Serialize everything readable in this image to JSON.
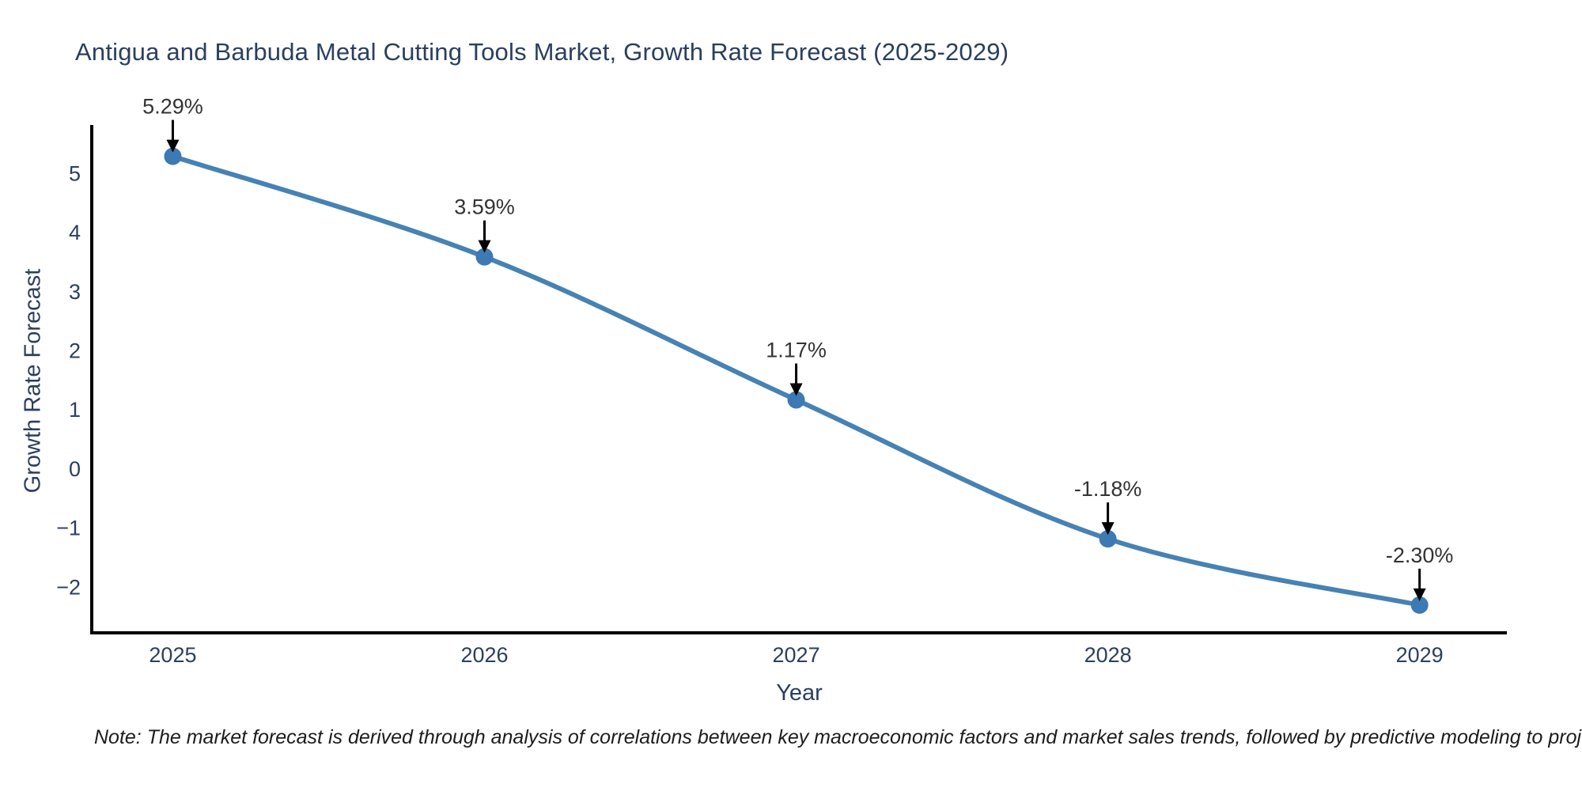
{
  "title": "Antigua and Barbuda Metal Cutting Tools Market, Growth Rate Forecast (2025-2029)",
  "note": "Note: The market forecast is derived through analysis of correlations between key macroeconomic factors and market sales trends, followed by predictive modeling to project future sales",
  "colors": {
    "background": "#ffffff",
    "title_text": "#2a3f5f",
    "axis_line": "#000000",
    "tick_text": "#2a3f5f",
    "line": "#4682b4",
    "marker": "#3d79b3",
    "annotation_text": "#333333",
    "annotation_arrow": "#000000",
    "note_text": "#1c1c1c"
  },
  "chart_data": {
    "type": "line",
    "title": "Antigua and Barbuda Metal Cutting Tools Market, Growth Rate Forecast (2025-2029)",
    "xlabel": "Year",
    "ylabel": "Growth Rate Forecast",
    "x": [
      2025,
      2026,
      2027,
      2028,
      2029
    ],
    "values": [
      5.29,
      3.59,
      1.17,
      -1.18,
      -2.3
    ],
    "point_labels": [
      "5.29%",
      "3.59%",
      "1.17%",
      "-1.18%",
      "-2.30%"
    ],
    "x_tick_labels": [
      "2025",
      "2026",
      "2027",
      "2028",
      "2029"
    ],
    "y_ticks": [
      5,
      4,
      3,
      2,
      1,
      0,
      -1,
      -2
    ],
    "y_tick_labels": [
      "5",
      "4",
      "3",
      "2",
      "1",
      "0",
      "−1",
      "−2"
    ],
    "xlim": [
      2024.74,
      2029.28
    ],
    "ylim": [
      -2.77,
      5.82
    ],
    "line_shape": "spline",
    "grid": false,
    "legend_position": "none"
  }
}
